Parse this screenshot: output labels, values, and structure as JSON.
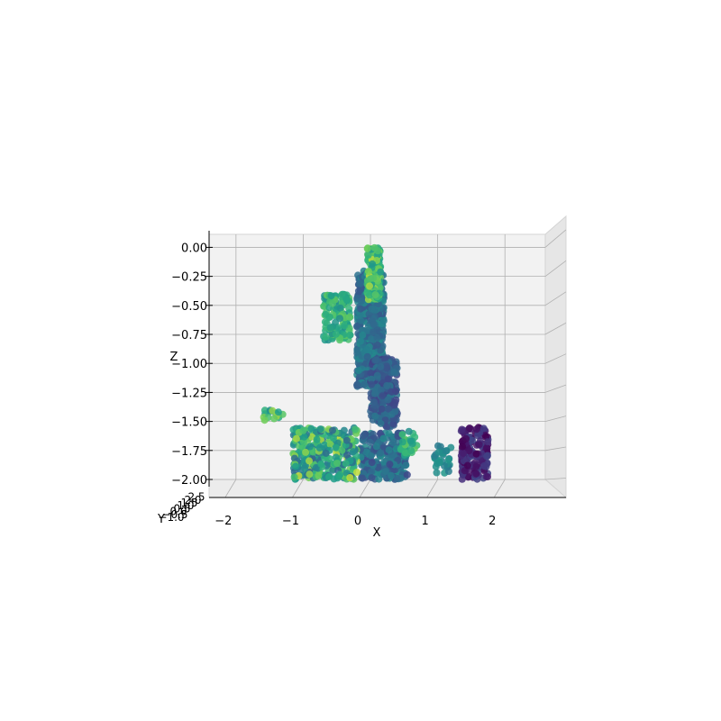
{
  "chart_data": {
    "type": "scatter",
    "projection": "3d",
    "title": "",
    "xlabel": "X",
    "ylabel": "Y",
    "zlabel": "Z",
    "xlim": [
      -2.4,
      2.6
    ],
    "zlim": [
      -2.0,
      0.05
    ],
    "x_ticks": [
      "−2",
      "−1",
      "0",
      "1",
      "2"
    ],
    "x_tick_values": [
      -2,
      -1,
      0,
      1,
      2
    ],
    "z_ticks": [
      "0.00",
      "−0.25",
      "−0.50",
      "−0.75",
      "−1.00",
      "−1.25",
      "−1.50",
      "−1.75",
      "−2.00"
    ],
    "z_tick_values": [
      0.0,
      -0.25,
      -0.5,
      -0.75,
      -1.0,
      -1.25,
      -1.5,
      -1.75,
      -2.0
    ],
    "y_ticks": [
      "−1.0",
      "−0.5",
      "0.0",
      "0.5",
      "1.0",
      "1.5",
      "2.0",
      "2.5"
    ],
    "colormap": "viridis",
    "grid": true,
    "colors": {
      "pane": "#f2f2f2",
      "grid": "#b0b0b0",
      "pane_edge": "#d4d4d4"
    },
    "clusters": [
      {
        "x": [
          -0.2,
          0.2
        ],
        "z": [
          -1.2,
          -0.2
        ],
        "count": 520,
        "color_range": [
          0.3,
          0.55
        ]
      },
      {
        "x": [
          -0.05,
          0.15
        ],
        "z": [
          -0.45,
          0.0
        ],
        "count": 180,
        "color_range": [
          0.6,
          0.95
        ]
      },
      {
        "x": [
          -0.7,
          -0.3
        ],
        "z": [
          -0.8,
          -0.4
        ],
        "count": 120,
        "color_range": [
          0.55,
          0.85
        ]
      },
      {
        "x": [
          0.0,
          0.4
        ],
        "z": [
          -1.55,
          -0.95
        ],
        "count": 260,
        "color_range": [
          0.22,
          0.45
        ]
      },
      {
        "x": [
          -0.15,
          0.55
        ],
        "z": [
          -2.0,
          -1.6
        ],
        "count": 260,
        "color_range": [
          0.25,
          0.55
        ]
      },
      {
        "x": [
          -1.15,
          -0.2
        ],
        "z": [
          -2.0,
          -1.55
        ],
        "count": 300,
        "color_range": [
          0.35,
          0.95
        ]
      },
      {
        "x": [
          0.45,
          0.7
        ],
        "z": [
          -1.8,
          -1.55
        ],
        "count": 25,
        "color_range": [
          0.55,
          0.85
        ]
      },
      {
        "x": [
          0.95,
          1.2
        ],
        "z": [
          -1.95,
          -1.7
        ],
        "count": 30,
        "color_range": [
          0.45,
          0.6
        ]
      },
      {
        "x": [
          1.35,
          1.75
        ],
        "z": [
          -2.0,
          -1.55
        ],
        "count": 160,
        "color_range": [
          0.0,
          0.25
        ]
      },
      {
        "x": [
          -1.6,
          -1.3
        ],
        "z": [
          -1.5,
          -1.4
        ],
        "count": 15,
        "color_range": [
          0.55,
          0.95
        ]
      }
    ]
  }
}
